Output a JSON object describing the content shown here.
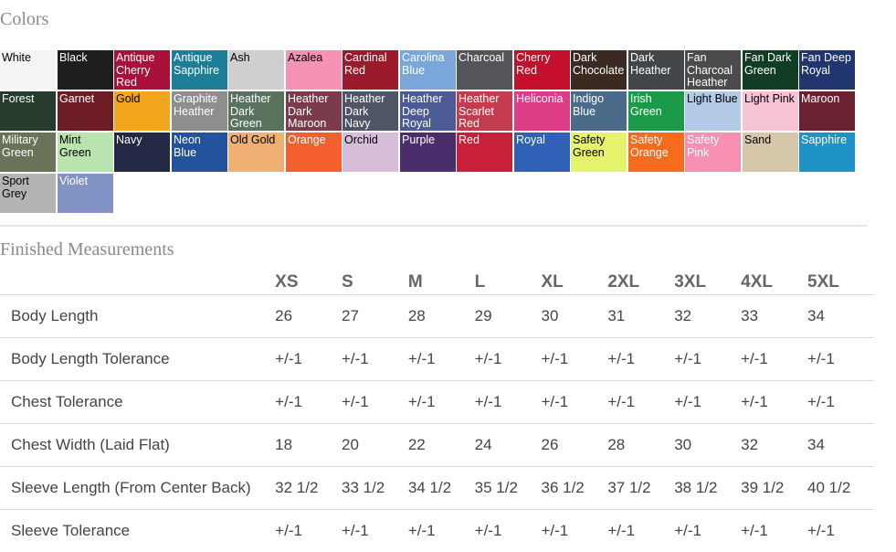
{
  "colors_title": "Colors",
  "measurements_title": "Finished Measurements",
  "swatches": [
    {
      "label": "White",
      "bg": "#f4f4f4",
      "fg": "#000000"
    },
    {
      "label": "Black",
      "bg": "#1e1e1e",
      "fg": "#ffffff"
    },
    {
      "label": "Antique Cherry Red",
      "bg": "#a8123a",
      "fg": "#ffffff"
    },
    {
      "label": "Antique Sapphire",
      "bg": "#1c7e97",
      "fg": "#ffffff"
    },
    {
      "label": "Ash",
      "bg": "#cfcfcf",
      "fg": "#000000"
    },
    {
      "label": "Azalea",
      "bg": "#f792b5",
      "fg": "#000000"
    },
    {
      "label": "Cardinal Red",
      "bg": "#9b1a2c",
      "fg": "#ffffff"
    },
    {
      "label": "Carolina Blue",
      "bg": "#7aa7d9",
      "fg": "#ffffff"
    },
    {
      "label": "Charcoal",
      "bg": "#555559",
      "fg": "#ffffff"
    },
    {
      "label": "Cherry Red",
      "bg": "#c4102d",
      "fg": "#ffffff"
    },
    {
      "label": "Dark Chocolate",
      "bg": "#3b2a22",
      "fg": "#ffffff"
    },
    {
      "label": "Dark Heather",
      "bg": "#434649",
      "fg": "#ffffff"
    },
    {
      "label": "Fan Charcoal Heather",
      "bg": "#4b4b4d",
      "fg": "#ffffff"
    },
    {
      "label": "Fan Dark Green",
      "bg": "#123d25",
      "fg": "#ffffff"
    },
    {
      "label": "Fan Deep Royal",
      "bg": "#21356f",
      "fg": "#ffffff"
    },
    {
      "label": "Forest",
      "bg": "#253b2c",
      "fg": "#ffffff"
    },
    {
      "label": "Garnet",
      "bg": "#6e1c24",
      "fg": "#ffffff"
    },
    {
      "label": "Gold",
      "bg": "#f3a51d",
      "fg": "#000000"
    },
    {
      "label": "Graphite Heather",
      "bg": "#8e8e8e",
      "fg": "#ffffff"
    },
    {
      "label": "Heather Dark Green",
      "bg": "#58725d",
      "fg": "#ffffff"
    },
    {
      "label": "Heather Dark Maroon",
      "bg": "#7a3c4a",
      "fg": "#ffffff"
    },
    {
      "label": "Heather Dark Navy",
      "bg": "#4f5467",
      "fg": "#ffffff"
    },
    {
      "label": "Heather Deep Royal",
      "bg": "#4c5b93",
      "fg": "#ffffff"
    },
    {
      "label": "Heather Scarlet Red",
      "bg": "#c43b4e",
      "fg": "#ffffff"
    },
    {
      "label": "Heliconia",
      "bg": "#dc3d86",
      "fg": "#ffffff"
    },
    {
      "label": "Indigo Blue",
      "bg": "#4a6b8a",
      "fg": "#ffffff"
    },
    {
      "label": "Irish Green",
      "bg": "#1b9a48",
      "fg": "#ffffff"
    },
    {
      "label": "Light Blue",
      "bg": "#b3cbe6",
      "fg": "#000000"
    },
    {
      "label": "Light Pink",
      "bg": "#f6c4d6",
      "fg": "#000000"
    },
    {
      "label": "Maroon",
      "bg": "#6a2233",
      "fg": "#ffffff"
    },
    {
      "label": "Military Green",
      "bg": "#6a7257",
      "fg": "#ffffff"
    },
    {
      "label": "Mint Green",
      "bg": "#b9e4b0",
      "fg": "#000000"
    },
    {
      "label": "Navy",
      "bg": "#232944",
      "fg": "#ffffff"
    },
    {
      "label": "Neon Blue",
      "bg": "#24539e",
      "fg": "#ffffff"
    },
    {
      "label": "Old Gold",
      "bg": "#f0b073",
      "fg": "#000000"
    },
    {
      "label": "Orange",
      "bg": "#f3602d",
      "fg": "#ffffff"
    },
    {
      "label": "Orchid",
      "bg": "#d8bddb",
      "fg": "#000000"
    },
    {
      "label": "Purple",
      "bg": "#4a2d6a",
      "fg": "#ffffff"
    },
    {
      "label": "Red",
      "bg": "#c8203a",
      "fg": "#ffffff"
    },
    {
      "label": "Royal",
      "bg": "#2f61b7",
      "fg": "#ffffff"
    },
    {
      "label": "Safety Green",
      "bg": "#e5f26c",
      "fg": "#000000"
    },
    {
      "label": "Safety Orange",
      "bg": "#f76b1c",
      "fg": "#ffffff"
    },
    {
      "label": "Safety Pink",
      "bg": "#f78fb3",
      "fg": "#ffffff"
    },
    {
      "label": "Sand",
      "bg": "#d7c7aa",
      "fg": "#000000"
    },
    {
      "label": "Sapphire",
      "bg": "#1f93c8",
      "fg": "#ffffff"
    },
    {
      "label": "Sport Grey",
      "bg": "#b4b4b4",
      "fg": "#000000"
    },
    {
      "label": "Violet",
      "bg": "#8293c6",
      "fg": "#ffffff"
    }
  ],
  "sizes": [
    "XS",
    "S",
    "M",
    "L",
    "XL",
    "2XL",
    "3XL",
    "4XL",
    "5XL"
  ],
  "rows": [
    {
      "label": "Body Length",
      "values": [
        "26",
        "27",
        "28",
        "29",
        "30",
        "31",
        "32",
        "33",
        "34"
      ]
    },
    {
      "label": "Body Length Tolerance",
      "values": [
        "+/-1",
        "+/-1",
        "+/-1",
        "+/-1",
        "+/-1",
        "+/-1",
        "+/-1",
        "+/-1",
        "+/-1"
      ]
    },
    {
      "label": "Chest Tolerance",
      "values": [
        "+/-1",
        "+/-1",
        "+/-1",
        "+/-1",
        "+/-1",
        "+/-1",
        "+/-1",
        "+/-1",
        "+/-1"
      ]
    },
    {
      "label": "Chest Width (Laid Flat)",
      "values": [
        "18",
        "20",
        "22",
        "24",
        "26",
        "28",
        "30",
        "32",
        "34"
      ]
    },
    {
      "label": "Sleeve Length (From Center Back)",
      "values": [
        "32 1/2",
        "33 1/2",
        "34 1/2",
        "35 1/2",
        "36 1/2",
        "37 1/2",
        "38 1/2",
        "39 1/2",
        "40 1/2"
      ]
    },
    {
      "label": "Sleeve Tolerance",
      "values": [
        "+/-1",
        "+/-1",
        "+/-1",
        "+/-1",
        "+/-1",
        "+/-1",
        "+/-1",
        "+/-1",
        "+/-1"
      ]
    }
  ]
}
